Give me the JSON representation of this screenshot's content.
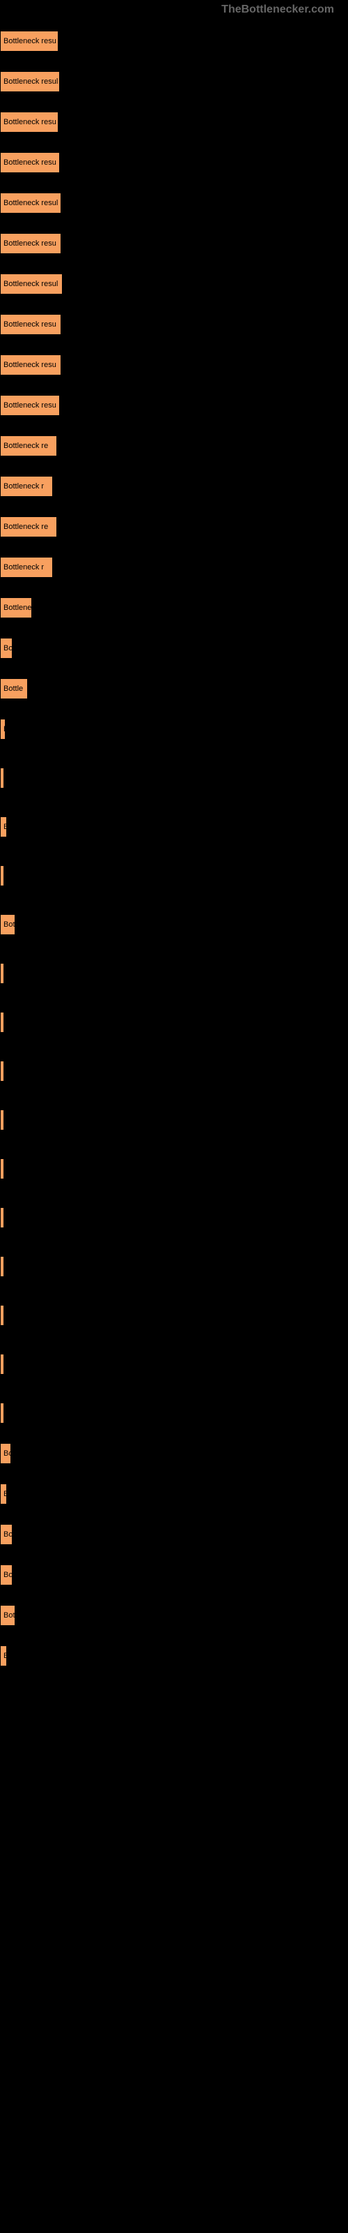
{
  "header": {
    "site_name": "TheBottlenecker.com"
  },
  "chart": {
    "type": "bar",
    "background_color": "#000000",
    "bar_color": "#f8a05f",
    "bar_border_color": "#000000",
    "text_color": "#000000",
    "label_fontsize": 11,
    "bars": [
      {
        "label": "Bottleneck resu",
        "width": 84
      },
      {
        "label": "Bottleneck resul",
        "width": 86
      },
      {
        "label": "Bottleneck resu",
        "width": 84
      },
      {
        "label": "Bottleneck resu",
        "width": 86
      },
      {
        "label": "Bottleneck resul",
        "width": 88
      },
      {
        "label": "Bottleneck resu",
        "width": 88
      },
      {
        "label": "Bottleneck resul",
        "width": 90
      },
      {
        "label": "Bottleneck resu",
        "width": 88
      },
      {
        "label": "Bottleneck resu",
        "width": 88
      },
      {
        "label": "Bottleneck resu",
        "width": 86
      },
      {
        "label": "Bottleneck re",
        "width": 82
      },
      {
        "label": "Bottleneck r",
        "width": 76
      },
      {
        "label": "Bottleneck re",
        "width": 82
      },
      {
        "label": "Bottleneck r",
        "width": 76
      },
      {
        "label": "Bottlene",
        "width": 46
      },
      {
        "label": "Bo",
        "width": 18
      },
      {
        "label": "Bottle",
        "width": 40
      },
      {
        "label": "Bl",
        "width": 8
      },
      {
        "label": "",
        "width": 2
      },
      {
        "label": "B",
        "width": 10
      },
      {
        "label": "",
        "width": 2
      },
      {
        "label": "Bot",
        "width": 22
      },
      {
        "label": "",
        "width": 2
      },
      {
        "label": "",
        "width": 4
      },
      {
        "label": "",
        "width": 2
      },
      {
        "label": "",
        "width": 2
      },
      {
        "label": "",
        "width": 2
      },
      {
        "label": "",
        "width": 2
      },
      {
        "label": "",
        "width": 2
      },
      {
        "label": "",
        "width": 2
      },
      {
        "label": "",
        "width": 2
      },
      {
        "label": "",
        "width": 2
      },
      {
        "label": "Bo",
        "width": 16
      },
      {
        "label": "B",
        "width": 10
      },
      {
        "label": "Bo",
        "width": 18
      },
      {
        "label": "Bo",
        "width": 18
      },
      {
        "label": "Bot",
        "width": 22
      },
      {
        "label": "B",
        "width": 10
      }
    ]
  }
}
